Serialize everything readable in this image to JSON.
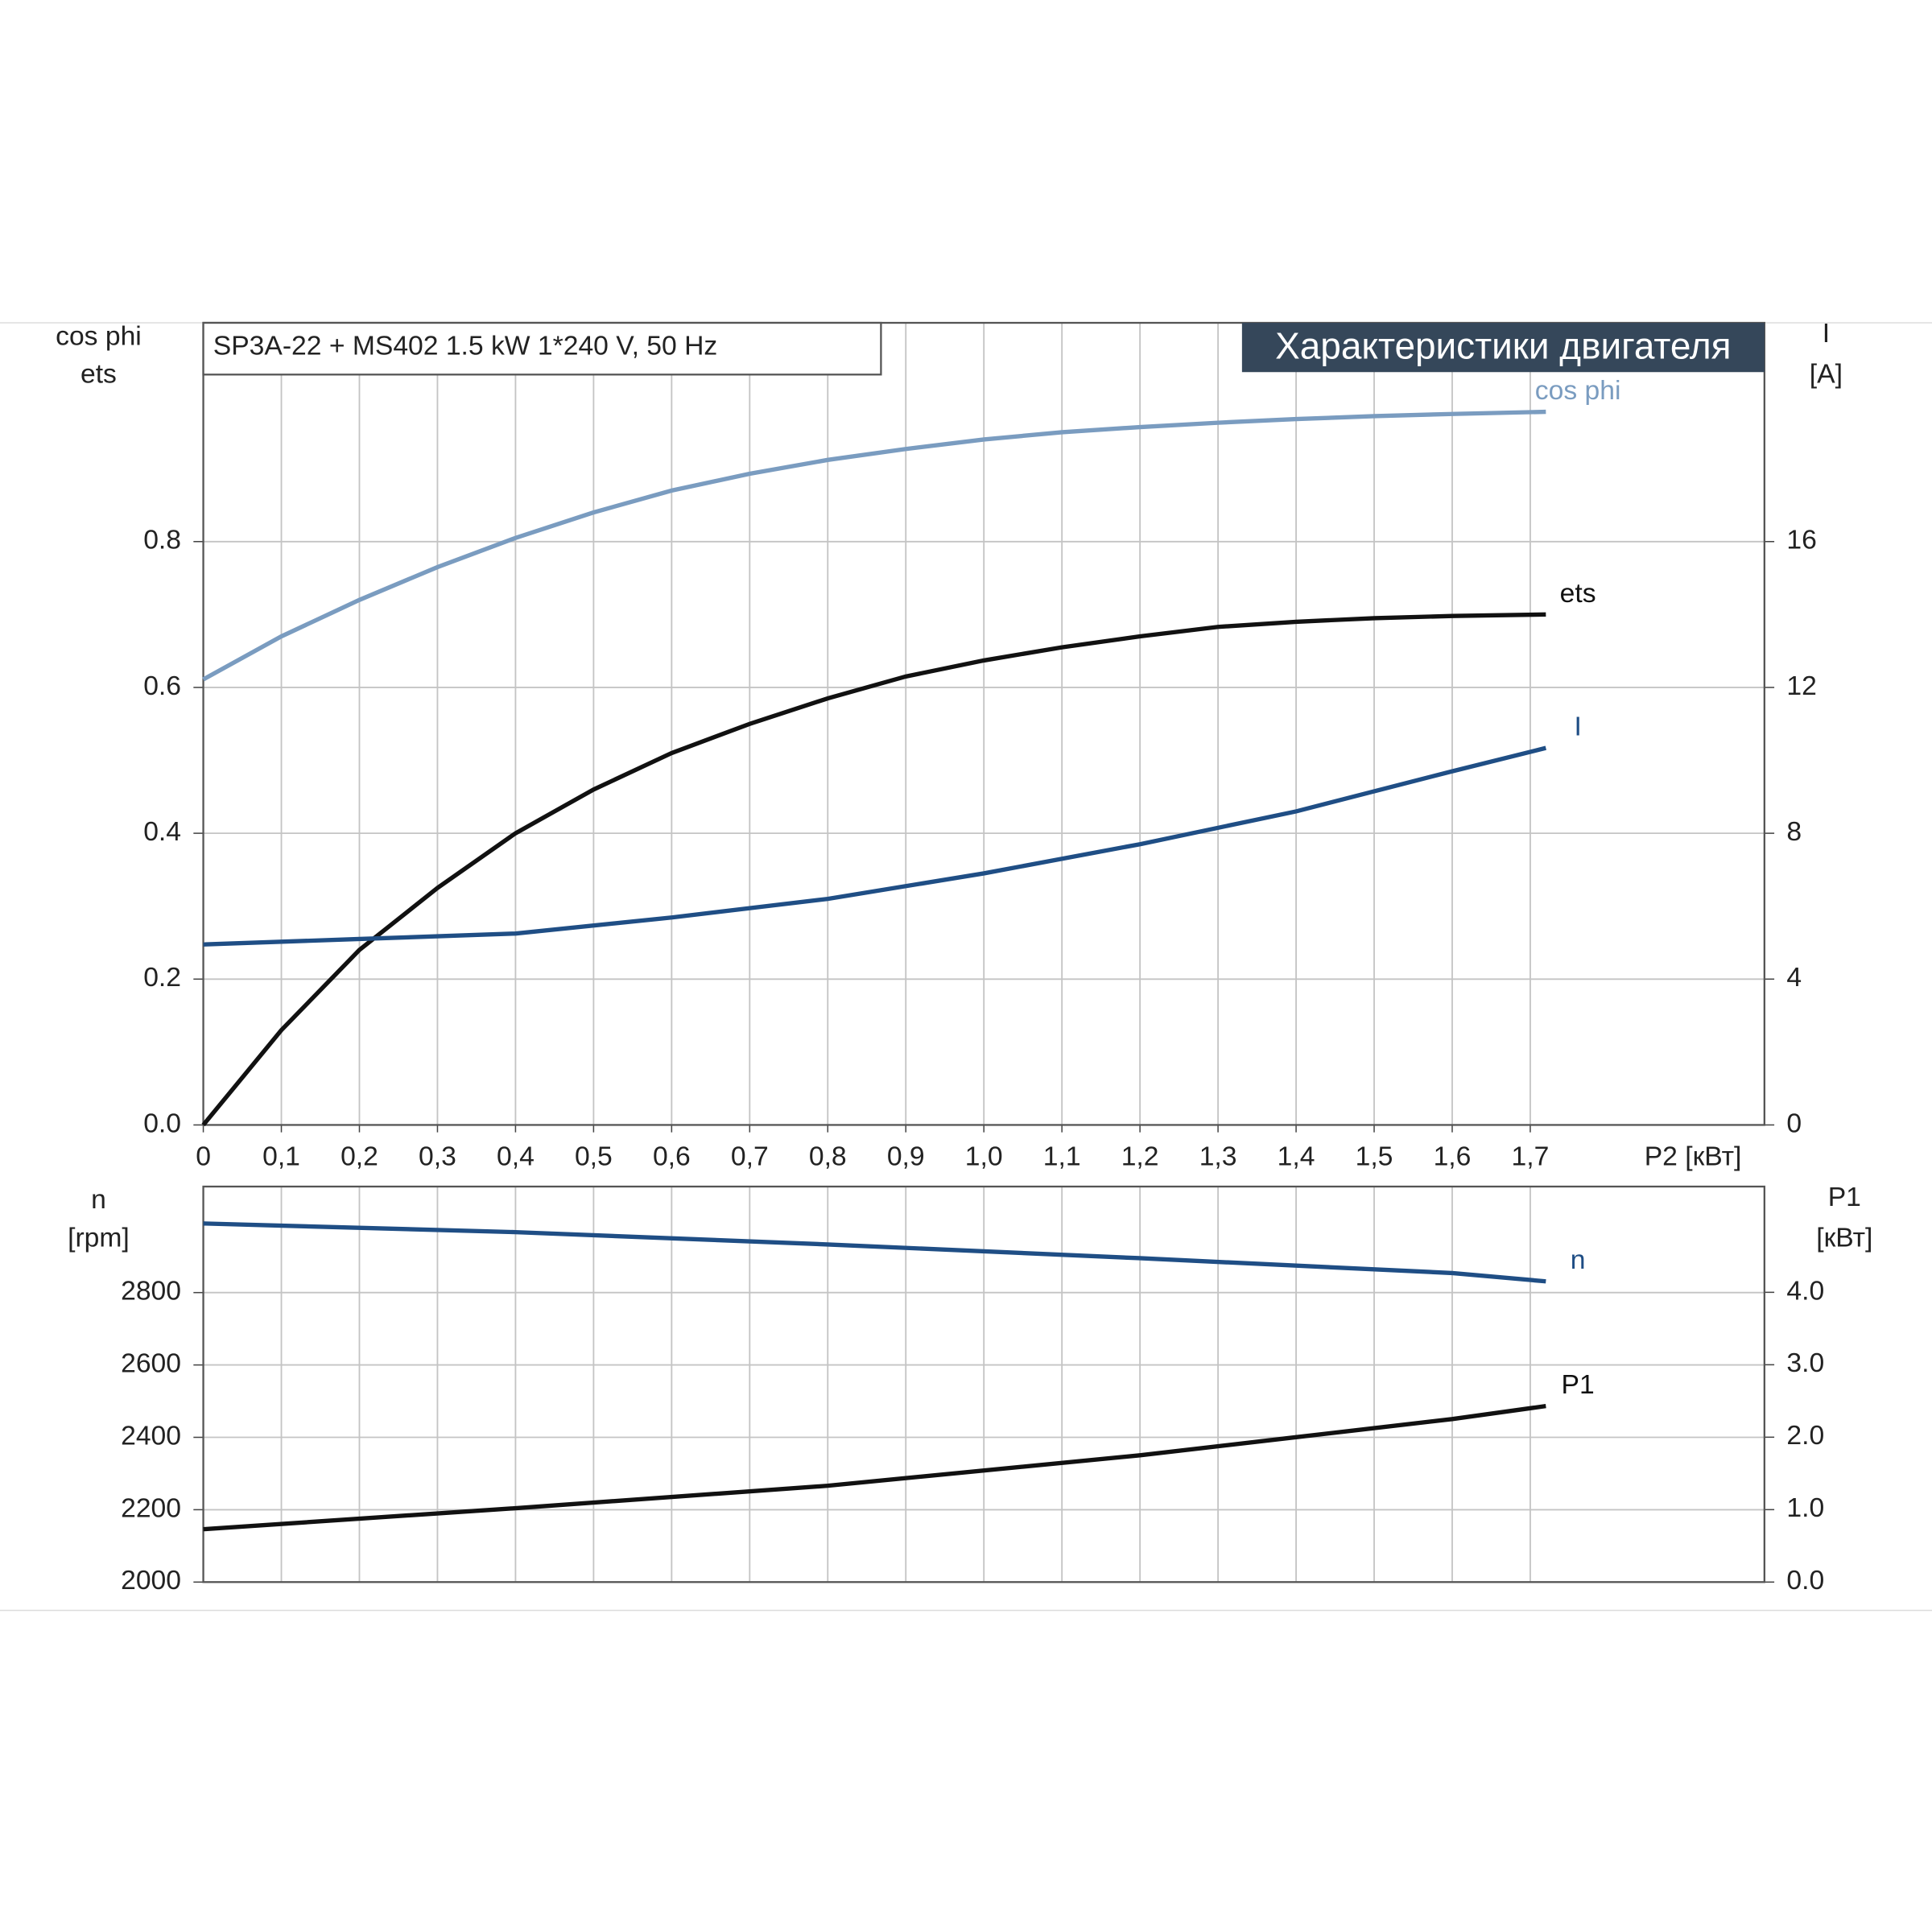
{
  "chart_data": [
    {
      "type": "line",
      "title": "SP3A-22 + MS402   1.5 kW   1*240 V, 50 Hz",
      "subtitle": "Характеристики двигателя",
      "x_label": "P2 [кВт]",
      "y_label": [
        "cos phi",
        "ets"
      ],
      "y2_label": [
        "I",
        "[A]"
      ],
      "xlim": [
        0,
        2.0
      ],
      "xticks": [
        {
          "value": 0,
          "label": "0"
        },
        {
          "value": 0.1,
          "label": "0,1"
        },
        {
          "value": 0.2,
          "label": "0,2"
        },
        {
          "value": 0.3,
          "label": "0,3"
        },
        {
          "value": 0.4,
          "label": "0,4"
        },
        {
          "value": 0.5,
          "label": "0,5"
        },
        {
          "value": 0.6,
          "label": "0,6"
        },
        {
          "value": 0.7,
          "label": "0,7"
        },
        {
          "value": 0.8,
          "label": "0,8"
        },
        {
          "value": 0.9,
          "label": "0,9"
        },
        {
          "value": 1.0,
          "label": "1,0"
        },
        {
          "value": 1.1,
          "label": "1,1"
        },
        {
          "value": 1.2,
          "label": "1,2"
        },
        {
          "value": 1.3,
          "label": "1,3"
        },
        {
          "value": 1.4,
          "label": "1,4"
        },
        {
          "value": 1.5,
          "label": "1,5"
        },
        {
          "value": 1.6,
          "label": "1,6"
        },
        {
          "value": 1.7,
          "label": "1,7"
        }
      ],
      "ylim": [
        0,
        1.1
      ],
      "yticks": [
        {
          "value": 0,
          "label": "0.0"
        },
        0.2,
        0.4,
        0.6,
        0.8
      ],
      "y2lim": [
        0,
        22
      ],
      "y2ticks": [
        0,
        4,
        8,
        12,
        16
      ],
      "grid": true,
      "series": [
        {
          "name": "cos phi",
          "color": "#7a9cc0",
          "x": [
            0,
            0.1,
            0.2,
            0.3,
            0.4,
            0.5,
            0.6,
            0.7,
            0.8,
            0.9,
            1.0,
            1.1,
            1.2,
            1.3,
            1.4,
            1.5,
            1.6,
            1.72
          ],
          "values": [
            0.611,
            0.67,
            0.72,
            0.765,
            0.805,
            0.84,
            0.87,
            0.893,
            0.912,
            0.927,
            0.94,
            0.95,
            0.957,
            0.963,
            0.968,
            0.972,
            0.975,
            0.978
          ]
        },
        {
          "name": "ets",
          "color": "#111111",
          "x": [
            0,
            0.1,
            0.2,
            0.3,
            0.4,
            0.5,
            0.6,
            0.7,
            0.8,
            0.9,
            1.0,
            1.1,
            1.2,
            1.3,
            1.4,
            1.5,
            1.6,
            1.72
          ],
          "values": [
            0,
            0.13,
            0.24,
            0.325,
            0.4,
            0.46,
            0.51,
            0.55,
            0.585,
            0.615,
            0.637,
            0.655,
            0.67,
            0.683,
            0.69,
            0.695,
            0.698,
            0.7
          ]
        },
        {
          "name": "I",
          "color": "#1f4e85",
          "axis": "y2",
          "x": [
            0,
            0.2,
            0.4,
            0.6,
            0.8,
            1.0,
            1.2,
            1.4,
            1.6,
            1.72
          ],
          "values": [
            4.95,
            5.1,
            5.25,
            5.69,
            6.2,
            6.9,
            7.7,
            8.6,
            9.7,
            10.34
          ]
        }
      ]
    },
    {
      "type": "line",
      "y_label": [
        "n",
        "[rpm]"
      ],
      "y2_label": [
        "P1",
        "[кВт]"
      ],
      "xlim": [
        0,
        2.0
      ],
      "ylim": [
        2000,
        3093
      ],
      "yticks": [
        2000,
        2200,
        2400,
        2600,
        2800
      ],
      "y2lim": [
        0,
        5.46
      ],
      "y2ticks": [
        {
          "value": 0,
          "label": "0.0"
        },
        {
          "value": 1,
          "label": "1.0"
        },
        {
          "value": 2,
          "label": "2.0"
        },
        {
          "value": 3,
          "label": "3.0"
        },
        {
          "value": 4,
          "label": "4.0"
        }
      ],
      "grid": true,
      "series": [
        {
          "name": "n",
          "color": "#1f4e85",
          "x": [
            0,
            0.4,
            0.8,
            1.2,
            1.6,
            1.72
          ],
          "values": [
            2991,
            2967,
            2933,
            2895,
            2854,
            2831
          ]
        },
        {
          "name": "P1",
          "color": "#111111",
          "axis": "y2",
          "x": [
            0,
            0.4,
            0.8,
            1.2,
            1.4,
            1.6,
            1.72
          ],
          "values": [
            0.73,
            1.02,
            1.33,
            1.75,
            2.0,
            2.25,
            2.43
          ]
        }
      ]
    }
  ]
}
